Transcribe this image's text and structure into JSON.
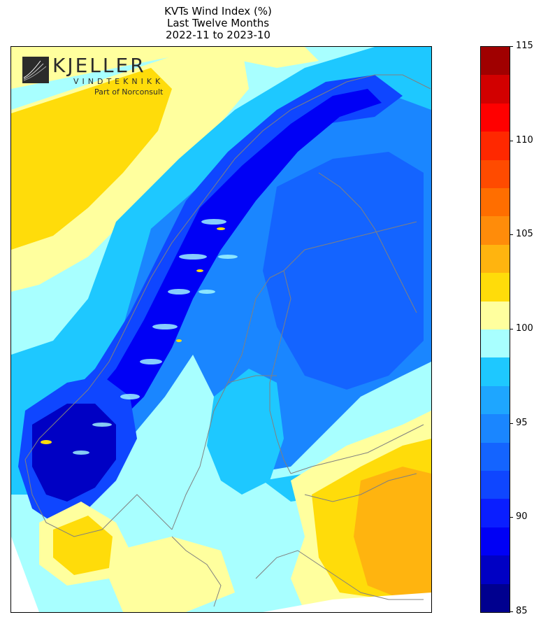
{
  "title": {
    "line1": "KVTs Wind Index (%)",
    "line2": "Last Twelve Months",
    "line3": "2022-11 to 2023-10"
  },
  "logo": {
    "name": "KJELLER",
    "subtitle": "VINDTEKNIKK",
    "tagline": "Part of Norconsult"
  },
  "colorbar": {
    "min": 85,
    "max": 115,
    "step": 1.667,
    "tick_labels": [
      "85",
      "90",
      "95",
      "100",
      "105",
      "110",
      "115"
    ],
    "colors": [
      "#00008f",
      "#0000c4",
      "#0000f5",
      "#0a1eff",
      "#0f46ff",
      "#1464ff",
      "#1a86ff",
      "#1ea6ff",
      "#1ec8ff",
      "#a8ffff",
      "#ffff9e",
      "#ffdc0a",
      "#ffb40f",
      "#ff8c0a",
      "#ff6e00",
      "#ff4b00",
      "#ff2800",
      "#ff0000",
      "#d20000",
      "#a00000"
    ]
  },
  "map": {
    "region": "Scandinavia and Finland",
    "index_range_shown": [
      85,
      105
    ],
    "colors": {
      "above_normal": "#ffdc0a",
      "slightly_above": "#ffff9e",
      "normal": "#a8ffff",
      "slightly_below": "#1ec8ff",
      "below": "#1a86ff",
      "well_below": "#0f46ff",
      "far_below": "#0000c4",
      "coastline": "#808080"
    }
  }
}
